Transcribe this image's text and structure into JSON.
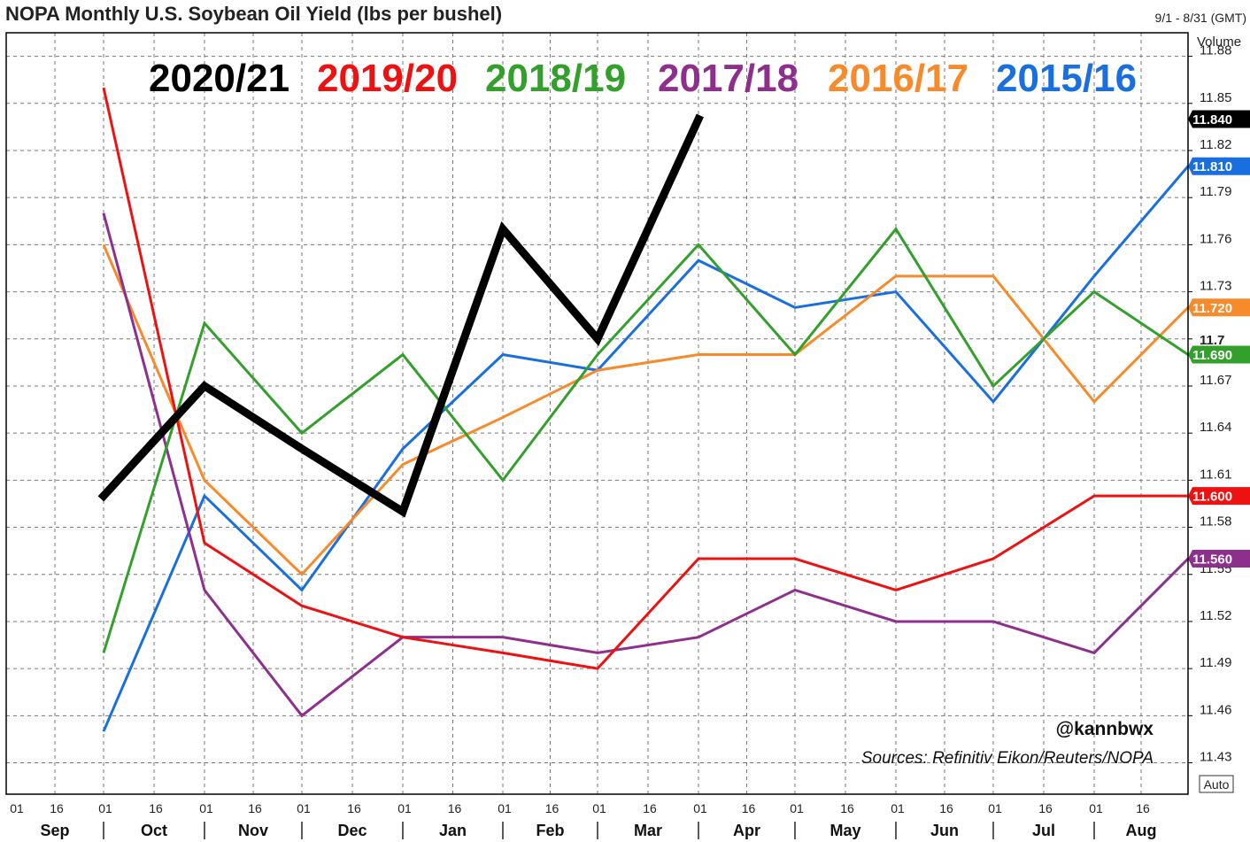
{
  "header": {
    "title": "NOPA Monthly U.S. Soybean Oil Yield (lbs per bushel)",
    "date_range": "9/1 - 8/31 (GMT)"
  },
  "right_axis": {
    "volume_label": "Volume",
    "auto_button": "Auto"
  },
  "watermark": {
    "handle": "@kannbwx",
    "sources": "Sources: Refinitiv Eikon/Reuters/NOPA"
  },
  "chart_data": {
    "type": "line",
    "title": "NOPA Monthly U.S. Soybean Oil Yield (lbs per bushel)",
    "xlabel": "",
    "ylabel": "",
    "ylim": [
      11.41,
      11.895
    ],
    "grid": true,
    "legend_placement": "top",
    "x_months": [
      "Sep",
      "Oct",
      "Nov",
      "Dec",
      "Jan",
      "Feb",
      "Mar",
      "Apr",
      "May",
      "Jun",
      "Jul",
      "Aug"
    ],
    "x_day_labels": [
      "01",
      "16"
    ],
    "y_ticks": [
      "11.43",
      "11.46",
      "11.49",
      "11.52",
      "11.55",
      "11.58",
      "11.61",
      "11.64",
      "11.67",
      "11.7",
      "11.73",
      "11.76",
      "11.79",
      "11.82",
      "11.85",
      "11.88"
    ],
    "y_highlight_tick": "11.7",
    "series": [
      {
        "name": "2020/21",
        "color": "#000000",
        "width": 9,
        "last_tag": "11.840",
        "x": [
          "Oct 01",
          "Nov 01",
          "Dec 01",
          "Jan 01",
          "Feb 01",
          "Mar 01",
          "Apr 01"
        ],
        "values": [
          11.6,
          11.67,
          11.63,
          11.59,
          11.77,
          11.7,
          11.84
        ]
      },
      {
        "name": "2019/20",
        "color": "#ee1111",
        "width": 3,
        "last_tag": "11.600",
        "x": [
          "Oct 01",
          "Nov 01",
          "Dec 01",
          "Jan 01",
          "Feb 01",
          "Mar 01",
          "Apr 01",
          "May 01",
          "Jun 01",
          "Jul 01",
          "Aug 01",
          "Sep 01"
        ],
        "values": [
          11.86,
          11.57,
          11.53,
          11.51,
          11.5,
          11.49,
          11.56,
          11.56,
          11.54,
          11.56,
          11.6,
          11.6
        ]
      },
      {
        "name": "2018/19",
        "color": "#33a02c",
        "width": 3,
        "last_tag": "11.690",
        "x": [
          "Oct 01",
          "Nov 01",
          "Dec 01",
          "Jan 01",
          "Feb 01",
          "Mar 01",
          "Apr 01",
          "May 01",
          "Jun 01",
          "Jul 01",
          "Aug 01",
          "Sep 01"
        ],
        "values": [
          11.5,
          11.71,
          11.64,
          11.69,
          11.61,
          11.69,
          11.76,
          11.69,
          11.77,
          11.67,
          11.73,
          11.69
        ]
      },
      {
        "name": "2017/18",
        "color": "#8e2f8e",
        "width": 3,
        "last_tag": "11.560",
        "x": [
          "Oct 01",
          "Nov 01",
          "Dec 01",
          "Jan 01",
          "Feb 01",
          "Mar 01",
          "Apr 01",
          "May 01",
          "Jun 01",
          "Jul 01",
          "Aug 01",
          "Sep 01"
        ],
        "values": [
          11.78,
          11.54,
          11.46,
          11.51,
          11.51,
          11.5,
          11.51,
          11.54,
          11.52,
          11.52,
          11.5,
          11.56
        ]
      },
      {
        "name": "2016/17",
        "color": "#f78a2a",
        "width": 3,
        "last_tag": "11.720",
        "x": [
          "Oct 01",
          "Nov 01",
          "Dec 01",
          "Jan 01",
          "Feb 01",
          "Mar 01",
          "Apr 01",
          "May 01",
          "Jun 01",
          "Jul 01",
          "Aug 01",
          "Sep 01"
        ],
        "values": [
          11.76,
          11.61,
          11.55,
          11.62,
          11.65,
          11.68,
          11.69,
          11.69,
          11.74,
          11.74,
          11.66,
          11.72
        ]
      },
      {
        "name": "2015/16",
        "color": "#1a6fe0",
        "width": 3,
        "last_tag": "11.810",
        "x": [
          "Oct 01",
          "Nov 01",
          "Dec 01",
          "Jan 01",
          "Feb 01",
          "Mar 01",
          "Apr 01",
          "May 01",
          "Jun 01",
          "Jul 01",
          "Aug 01",
          "Sep 01"
        ],
        "values": [
          11.45,
          11.6,
          11.54,
          11.63,
          11.69,
          11.68,
          11.75,
          11.72,
          11.73,
          11.66,
          11.74,
          11.81
        ]
      }
    ]
  }
}
